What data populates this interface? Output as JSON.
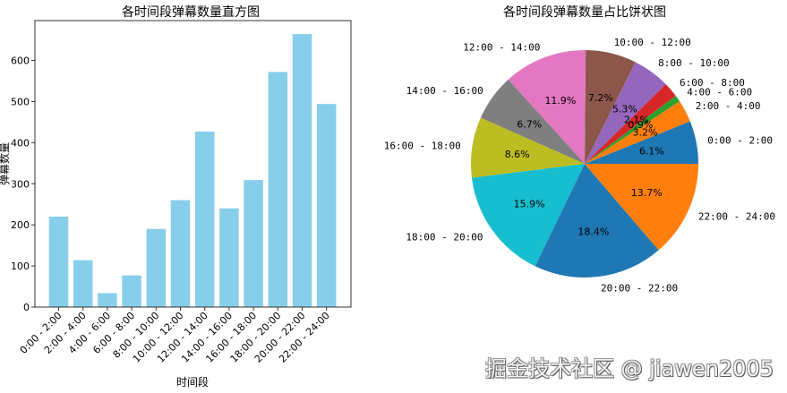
{
  "watermark": "掘金技术社区 @ jiawen2005",
  "chart_data": [
    {
      "type": "bar",
      "title": "各时间段弹幕数量直方图",
      "xlabel": "时间段",
      "ylabel": "弹幕数量",
      "categories": [
        "0:00 - 2:00",
        "2:00 - 4:00",
        "4:00 - 6:00",
        "6:00 - 8:00",
        "8:00 - 10:00",
        "10:00 - 12:00",
        "12:00 - 14:00",
        "14:00 - 16:00",
        "16:00 - 18:00",
        "18:00 - 20:00",
        "20:00 - 22:00",
        "22:00 - 24:00"
      ],
      "values": [
        220,
        114,
        34,
        77,
        190,
        260,
        427,
        240,
        309,
        572,
        664,
        494
      ],
      "yticks": [
        0,
        100,
        200,
        300,
        400,
        500,
        600
      ],
      "ylim": [
        0,
        697
      ],
      "color": "#87ceeb",
      "grid": false
    },
    {
      "type": "pie",
      "title": "各时间段弹幕数量占比饼状图",
      "labels": [
        "0:00 - 2:00",
        "2:00 - 4:00",
        "4:00 - 6:00",
        "6:00 - 8:00",
        "8:00 - 10:00",
        "10:00 - 12:00",
        "12:00 - 14:00",
        "14:00 - 16:00",
        "16:00 - 18:00",
        "18:00 - 20:00",
        "20:00 - 22:00",
        "22:00 - 24:00"
      ],
      "values": [
        220,
        114,
        34,
        77,
        190,
        260,
        427,
        240,
        309,
        572,
        664,
        494
      ],
      "percentages": [
        "6.1%",
        "3.2%",
        "0.9%",
        "2.1%",
        "5.3%",
        "7.2%",
        "11.9%",
        "6.7%",
        "8.6%",
        "15.9%",
        "18.4%",
        "13.7%"
      ],
      "colors": [
        "#1f77b4",
        "#ff7f0e",
        "#2ca02c",
        "#d62728",
        "#9467bd",
        "#8c564b",
        "#e377c2",
        "#7f7f7f",
        "#bcbd22",
        "#17becf",
        "#1f77b4",
        "#ff7f0e"
      ],
      "startangle": 0
    }
  ]
}
